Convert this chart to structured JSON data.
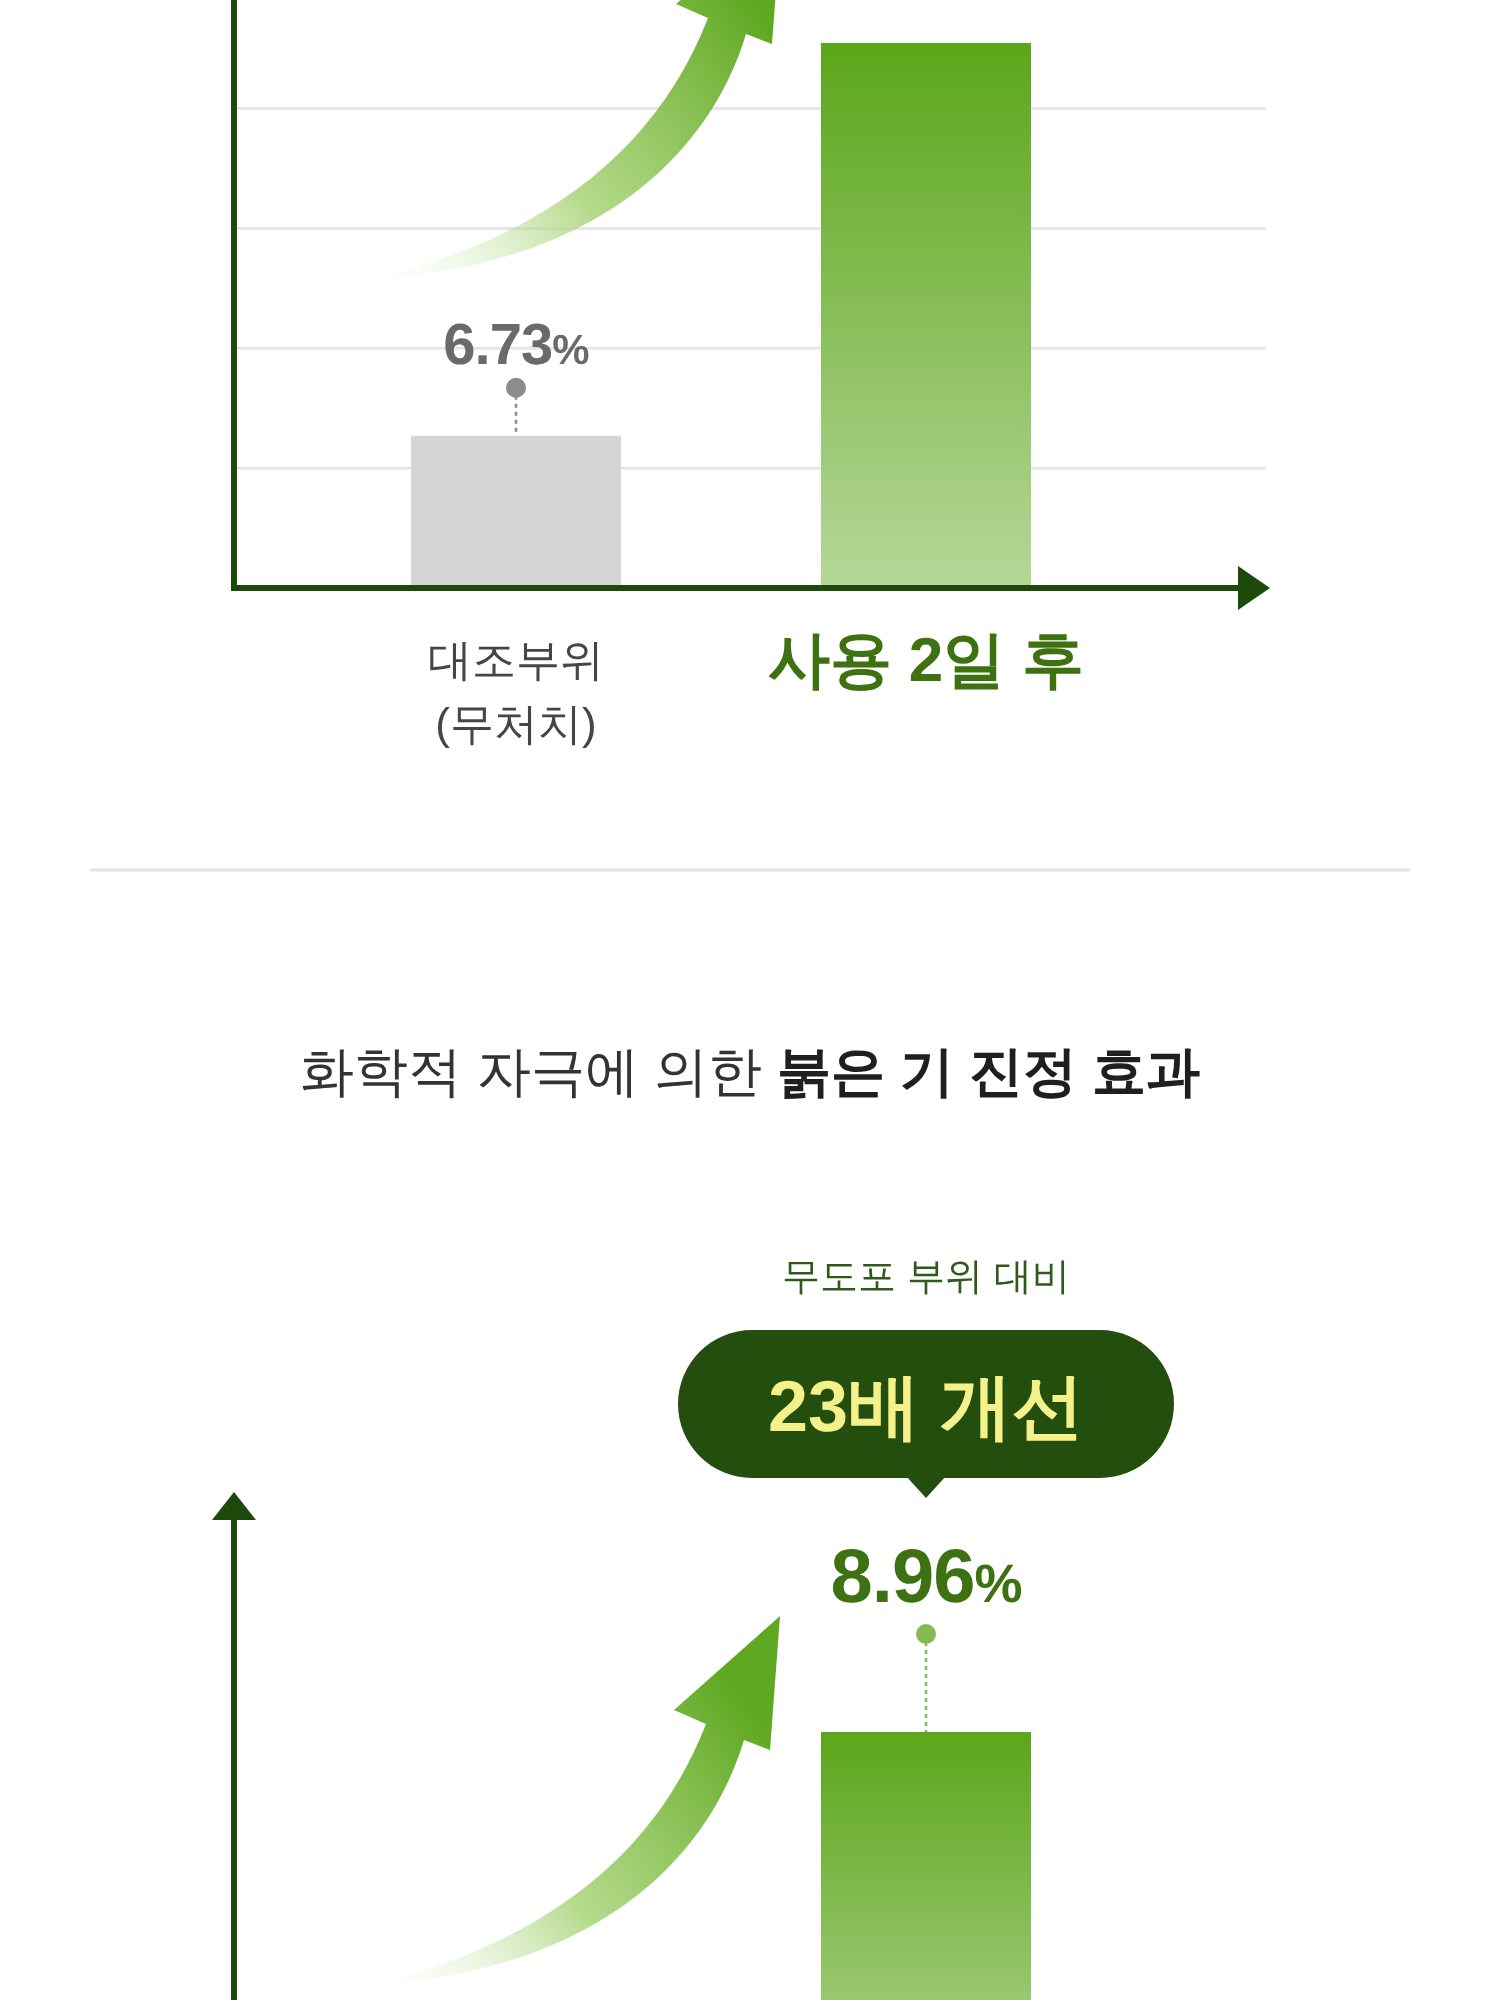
{
  "chart_data": [
    {
      "type": "bar",
      "categories": [
        "대조부위\n(무처치)",
        "사용 2일 후"
      ],
      "values": [
        6.73,
        24.1
      ],
      "colors": [
        "#d4d4d4",
        "#5ba61a"
      ],
      "value_labels": [
        "6.73%",
        null
      ],
      "ylim": [
        0,
        26
      ],
      "yticks": [
        {
          "value": 5.3,
          "label": null
        },
        {
          "value": 10.6,
          "label": null
        },
        {
          "value": 15.9,
          "label": null
        },
        {
          "value": 21.2,
          "label": null
        }
      ],
      "grid": "y",
      "tick_labels": "x"
    },
    {
      "type": "bar",
      "title": "화학적 자극에 의한 붉은 기 진정 효과",
      "categories": [
        null,
        null
      ],
      "values": [
        null,
        8.96
      ],
      "colors": [
        null,
        "#5ba61a"
      ],
      "value_labels": [
        null,
        "8.96%"
      ],
      "annotations": [
        "무도포 부위 대비",
        "23배 개선"
      ],
      "tick_labels": false
    }
  ]
}
